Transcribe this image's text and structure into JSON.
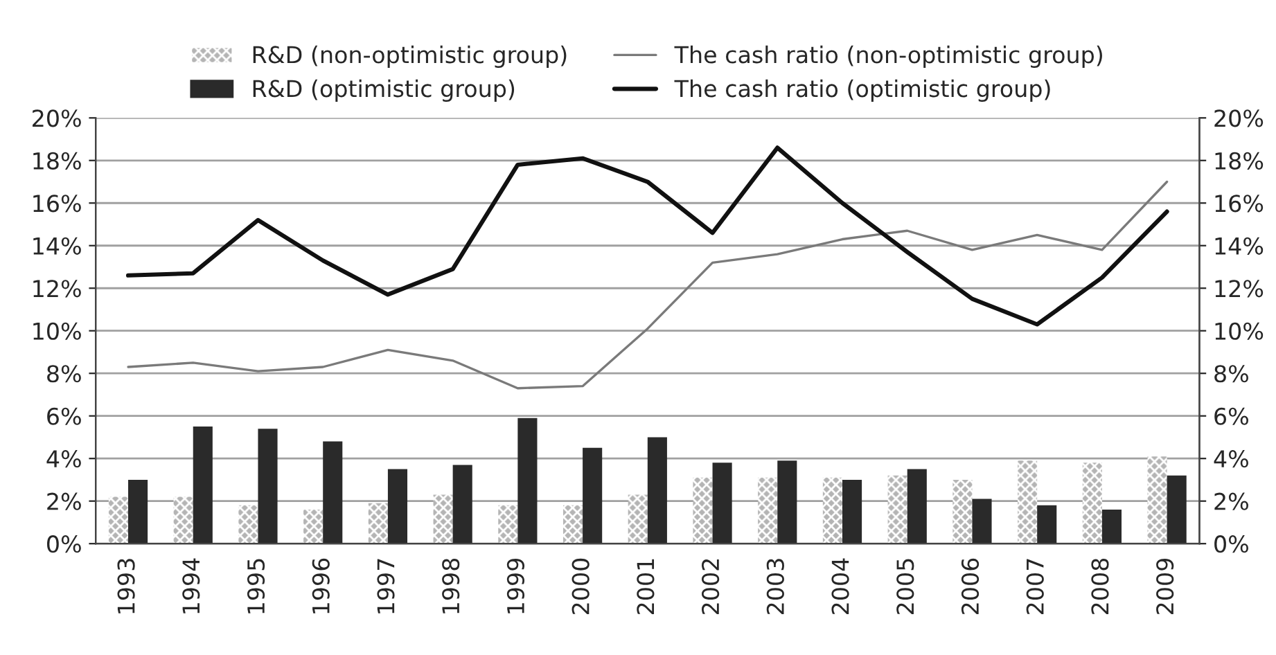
{
  "chart_data": {
    "type": "bar",
    "categories": [
      "1993",
      "1994",
      "1995",
      "1996",
      "1997",
      "1998",
      "1999",
      "2000",
      "2001",
      "2002",
      "2003",
      "2004",
      "2005",
      "2006",
      "2007",
      "2008",
      "2009"
    ],
    "series": [
      {
        "name": "R&D (non-optimistic group)",
        "color": "#b4b4b4",
        "values": [
          2.2,
          2.2,
          1.8,
          1.6,
          1.9,
          2.3,
          1.8,
          1.8,
          2.3,
          3.1,
          3.1,
          3.1,
          3.2,
          3.0,
          3.9,
          3.8,
          4.1
        ]
      },
      {
        "name": "R&D (optimistic group)",
        "color": "#2a2a2a",
        "values": [
          3.0,
          5.5,
          5.4,
          4.8,
          3.5,
          3.7,
          5.9,
          4.5,
          5.0,
          3.8,
          3.9,
          3.0,
          3.5,
          2.1,
          1.8,
          1.6,
          3.2
        ]
      },
      {
        "name": "The cash ratio (non-optimistic group)",
        "type": "line",
        "color": "#7a7a7a",
        "values": [
          8.3,
          8.5,
          8.1,
          8.3,
          9.1,
          8.6,
          7.3,
          7.4,
          10.1,
          13.2,
          13.6,
          14.3,
          14.7,
          13.8,
          14.5,
          13.8,
          17.0
        ]
      },
      {
        "name": "The cash ratio (optimistic group)",
        "type": "line",
        "color": "#111111",
        "values": [
          12.6,
          12.7,
          15.2,
          13.3,
          11.7,
          12.9,
          17.8,
          18.1,
          17.0,
          14.6,
          18.6,
          16.0,
          13.7,
          11.5,
          10.3,
          12.5,
          15.6
        ]
      }
    ],
    "ylim": [
      0,
      20
    ],
    "yticks": [
      {
        "value": 0,
        "label": "0%"
      },
      {
        "value": 2,
        "label": "2%"
      },
      {
        "value": 4,
        "label": "4%"
      },
      {
        "value": 6,
        "label": "6%"
      },
      {
        "value": 8,
        "label": "8%"
      },
      {
        "value": 10,
        "label": "10%"
      },
      {
        "value": 12,
        "label": "12%"
      },
      {
        "value": 14,
        "label": "14%"
      },
      {
        "value": 16,
        "label": "16%"
      },
      {
        "value": 18,
        "label": "18%"
      },
      {
        "value": 20,
        "label": "20%"
      }
    ],
    "y2lim": [
      0,
      20
    ],
    "y2ticks": [
      {
        "value": 0,
        "label": "0%"
      },
      {
        "value": 2,
        "label": "2%"
      },
      {
        "value": 4,
        "label": "4%"
      },
      {
        "value": 6,
        "label": "6%"
      },
      {
        "value": 8,
        "label": "8%"
      },
      {
        "value": 10,
        "label": "10%"
      },
      {
        "value": 12,
        "label": "12%"
      },
      {
        "value": 14,
        "label": "14%"
      },
      {
        "value": 16,
        "label": "16%"
      },
      {
        "value": 18,
        "label": "18%"
      },
      {
        "value": 20,
        "label": "20%"
      }
    ],
    "grid": "y",
    "legend": "top",
    "marker": "none",
    "line_style": "solid"
  }
}
